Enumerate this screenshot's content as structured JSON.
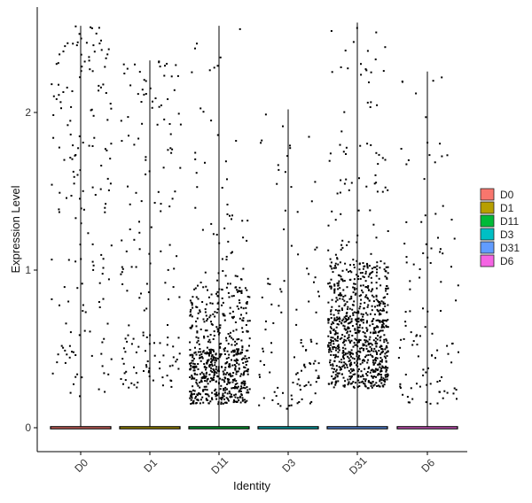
{
  "chart_data": {
    "type": "violin",
    "title": "",
    "xlabel": "Identity",
    "ylabel": "Expression Level",
    "ylim": [
      -0.15,
      2.62
    ],
    "yticks": [
      0,
      1,
      2
    ],
    "categories": [
      "D0",
      "D1",
      "D11",
      "D3",
      "D31",
      "D6"
    ],
    "colors": [
      "#F8766D",
      "#B79F00",
      "#00BA38",
      "#00BFC4",
      "#619CFF",
      "#F564E3"
    ],
    "violin_max": [
      2.55,
      2.33,
      2.55,
      2.02,
      2.57,
      2.26
    ],
    "series": [
      {
        "name": "D0",
        "bands": [
          {
            "lo": 0.15,
            "hi": 0.6,
            "n": 30
          },
          {
            "lo": 0.6,
            "hi": 1.3,
            "n": 35
          },
          {
            "lo": 1.3,
            "hi": 2.0,
            "n": 50
          },
          {
            "lo": 2.0,
            "hi": 2.55,
            "n": 55
          }
        ]
      },
      {
        "name": "D1",
        "bands": [
          {
            "lo": 0.25,
            "hi": 0.6,
            "n": 60
          },
          {
            "lo": 0.6,
            "hi": 1.3,
            "n": 35
          },
          {
            "lo": 1.3,
            "hi": 2.0,
            "n": 35
          },
          {
            "lo": 2.0,
            "hi": 2.33,
            "n": 30
          }
        ]
      },
      {
        "name": "D11",
        "bands": [
          {
            "lo": 0.15,
            "hi": 0.5,
            "n": 450
          },
          {
            "lo": 0.5,
            "hi": 0.9,
            "n": 180
          },
          {
            "lo": 0.9,
            "hi": 1.4,
            "n": 35
          },
          {
            "lo": 1.4,
            "hi": 2.55,
            "n": 22
          }
        ]
      },
      {
        "name": "D3",
        "bands": [
          {
            "lo": 0.12,
            "hi": 0.5,
            "n": 55
          },
          {
            "lo": 0.5,
            "hi": 1.0,
            "n": 30
          },
          {
            "lo": 1.0,
            "hi": 1.7,
            "n": 15
          },
          {
            "lo": 1.7,
            "hi": 2.02,
            "n": 8
          }
        ]
      },
      {
        "name": "D31",
        "bands": [
          {
            "lo": 0.25,
            "hi": 0.7,
            "n": 550
          },
          {
            "lo": 0.7,
            "hi": 1.05,
            "n": 250
          },
          {
            "lo": 1.05,
            "hi": 1.8,
            "n": 55
          },
          {
            "lo": 1.8,
            "hi": 2.57,
            "n": 25
          }
        ]
      },
      {
        "name": "D6",
        "bands": [
          {
            "lo": 0.15,
            "hi": 0.6,
            "n": 55
          },
          {
            "lo": 0.6,
            "hi": 1.2,
            "n": 30
          },
          {
            "lo": 1.2,
            "hi": 1.8,
            "n": 15
          },
          {
            "lo": 1.8,
            "hi": 2.26,
            "n": 8
          }
        ]
      }
    ],
    "zero_values": 0,
    "legend": {
      "position": "right",
      "entries": [
        "D0",
        "D1",
        "D11",
        "D3",
        "D31",
        "D6"
      ]
    },
    "grid": false
  }
}
